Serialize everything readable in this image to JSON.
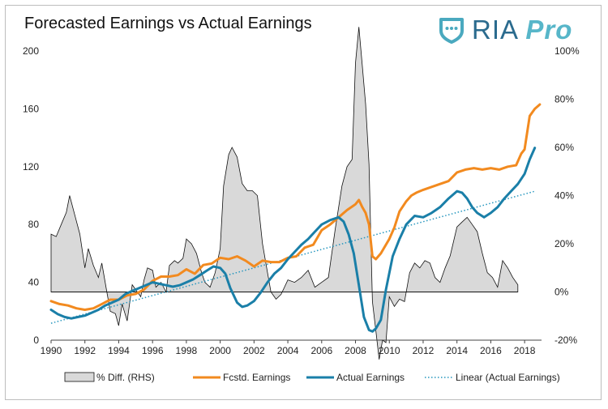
{
  "title": "Forecasted Earnings vs Actual Earnings",
  "logo": {
    "text_ria": "RIA",
    "text_pro": "Pro",
    "icon": "shield-icon"
  },
  "chart_data": {
    "type": "line",
    "title": "Forecasted Earnings vs Actual Earnings",
    "xlim": [
      1990,
      2019
    ],
    "ylim_left": [
      0,
      200
    ],
    "ylim_right": [
      -20,
      100
    ],
    "x_ticks": [
      "1990",
      "1992",
      "1994",
      "1996",
      "1998",
      "2000",
      "2002",
      "2004",
      "2006",
      "2008",
      "2010",
      "2012",
      "2014",
      "2016",
      "2018"
    ],
    "y_ticks_left": [
      "0",
      "40",
      "80",
      "120",
      "160",
      "200"
    ],
    "y_ticks_right": [
      "-20%",
      "0%",
      "20%",
      "40%",
      "60%",
      "80%",
      "100%"
    ],
    "grid": false,
    "legend_position": "bottom",
    "colors": {
      "forecast": "#f28a1f",
      "actual": "#1a7fa8",
      "trend": "#2596be",
      "diff_fill": "#d9d9d9",
      "diff_stroke": "#111111"
    },
    "series": [
      {
        "name": "% Diff. (RHS)",
        "axis": "right",
        "style": "area",
        "x": [
          1990,
          1990.3,
          1990.6,
          1990.9,
          1991.1,
          1991.4,
          1991.7,
          1992,
          1992.2,
          1992.5,
          1992.8,
          1993,
          1993.3,
          1993.5,
          1993.8,
          1994,
          1994.2,
          1994.5,
          1994.8,
          1995,
          1995.3,
          1995.5,
          1995.7,
          1996,
          1996.2,
          1996.5,
          1996.8,
          1997,
          1997.3,
          1997.5,
          1997.8,
          1998,
          1998.3,
          1998.6,
          1998.9,
          1999.1,
          1999.4,
          1999.7,
          2000,
          2000.2,
          2000.5,
          2000.7,
          2001,
          2001.3,
          2001.6,
          2001.9,
          2002.2,
          2002.5,
          2002.8,
          2003,
          2003.3,
          2003.6,
          2004,
          2004.4,
          2004.8,
          2005.2,
          2005.6,
          2006,
          2006.4,
          2006.8,
          2007.2,
          2007.5,
          2007.8,
          2008,
          2008.2,
          2008.4,
          2008.6,
          2008.8,
          2009,
          2009.2,
          2009.4,
          2009.6,
          2009.8,
          2010,
          2010.3,
          2010.6,
          2010.9,
          2011.2,
          2011.5,
          2011.8,
          2012.1,
          2012.4,
          2012.7,
          2013,
          2013.3,
          2013.6,
          2014,
          2014.3,
          2014.6,
          2014.9,
          2015.2,
          2015.5,
          2015.8,
          2016.1,
          2016.4,
          2016.7,
          2017,
          2017.3,
          2017.6
        ],
        "values": [
          24,
          23,
          28,
          33,
          40,
          32,
          24,
          10,
          18,
          11,
          6,
          12,
          0,
          -8,
          -9,
          -14,
          -5,
          -12,
          3,
          1,
          -2,
          5,
          10,
          9,
          2,
          4,
          0,
          11,
          13,
          12,
          14,
          22,
          20,
          16,
          8,
          4,
          2,
          8,
          18,
          44,
          57,
          60,
          56,
          45,
          42,
          42,
          40,
          20,
          8,
          0,
          -3,
          -1,
          5,
          4,
          6,
          9,
          2,
          4,
          6,
          26,
          44,
          52,
          55,
          95,
          110,
          94,
          78,
          53,
          -4,
          -16,
          -28,
          -20,
          -21,
          -2,
          -6,
          -3,
          -4,
          8,
          12,
          10,
          13,
          12,
          6,
          4,
          10,
          15,
          27,
          29,
          31,
          28,
          25,
          16,
          8,
          6,
          2,
          13,
          10,
          6,
          3
        ]
      },
      {
        "name": "Fcstd. Earnings",
        "axis": "left",
        "style": "line",
        "x": [
          1990,
          1990.5,
          1991,
          1991.5,
          1992,
          1992.5,
          1993,
          1993.5,
          1994,
          1994.5,
          1995,
          1995.5,
          1996,
          1996.5,
          1997,
          1997.5,
          1998,
          1998.5,
          1999,
          1999.5,
          2000,
          2000.5,
          2001,
          2001.5,
          2002,
          2002.5,
          2003,
          2003.5,
          2004,
          2004.5,
          2005,
          2005.5,
          2006,
          2006.5,
          2007,
          2007.5,
          2008,
          2008.2,
          2008.4,
          2008.6,
          2008.8,
          2009,
          2009.2,
          2009.5,
          2010,
          2010.3,
          2010.6,
          2011,
          2011.3,
          2011.6,
          2012,
          2012.5,
          2013,
          2013.5,
          2014,
          2014.5,
          2015,
          2015.5,
          2016,
          2016.5,
          2017,
          2017.5,
          2017.8,
          2018,
          2018.3,
          2018.6,
          2018.9
        ],
        "values": [
          27,
          25,
          24,
          22,
          21,
          22,
          25,
          28,
          28,
          31,
          32,
          35,
          41,
          44,
          44,
          45,
          49,
          46,
          52,
          53,
          57,
          56,
          58,
          55,
          51,
          55,
          54,
          54,
          57,
          58,
          64,
          66,
          76,
          80,
          85,
          90,
          94,
          97,
          92,
          88,
          80,
          58,
          56,
          60,
          70,
          78,
          89,
          96,
          100,
          102,
          104,
          106,
          108,
          110,
          116,
          118,
          119,
          118,
          119,
          118,
          120,
          121,
          129,
          132,
          155,
          160,
          163
        ]
      },
      {
        "name": "Actual Earnings",
        "axis": "left",
        "style": "line",
        "x": [
          1990,
          1990.4,
          1990.8,
          1991.2,
          1991.6,
          1992,
          1992.4,
          1992.8,
          1993.2,
          1993.6,
          1994,
          1994.4,
          1994.8,
          1995.2,
          1995.6,
          1996,
          1996.4,
          1996.8,
          1997.2,
          1997.6,
          1998,
          1998.4,
          1998.8,
          1999.2,
          1999.6,
          2000,
          2000.3,
          2000.6,
          2001,
          2001.3,
          2001.6,
          2002,
          2002.4,
          2002.8,
          2003.2,
          2003.6,
          2004,
          2004.4,
          2004.8,
          2005.2,
          2005.6,
          2006,
          2006.5,
          2007,
          2007.3,
          2007.6,
          2007.9,
          2008.2,
          2008.5,
          2008.8,
          2009,
          2009.2,
          2009.5,
          2009.8,
          2010.2,
          2010.6,
          2011,
          2011.5,
          2012,
          2012.5,
          2013,
          2013.5,
          2014,
          2014.3,
          2014.6,
          2014.9,
          2015.2,
          2015.6,
          2016,
          2016.4,
          2016.8,
          2017.2,
          2017.6,
          2018,
          2018.3,
          2018.6
        ],
        "values": [
          21,
          18,
          16,
          15,
          16,
          17,
          19,
          21,
          24,
          26,
          28,
          32,
          34,
          36,
          38,
          40,
          39,
          38,
          37,
          38,
          40,
          42,
          45,
          48,
          51,
          50,
          46,
          36,
          26,
          23,
          24,
          27,
          33,
          40,
          46,
          50,
          56,
          61,
          66,
          70,
          75,
          80,
          83,
          85,
          82,
          73,
          60,
          38,
          16,
          7,
          6,
          8,
          14,
          35,
          58,
          70,
          80,
          86,
          85,
          88,
          92,
          98,
          103,
          102,
          98,
          92,
          88,
          85,
          88,
          92,
          98,
          103,
          108,
          115,
          125,
          133
        ]
      },
      {
        "name": "Linear (Actual Earnings)",
        "axis": "left",
        "style": "dotted",
        "x": [
          1990,
          2018.6
        ],
        "values": [
          11.7,
          103
        ]
      }
    ]
  }
}
